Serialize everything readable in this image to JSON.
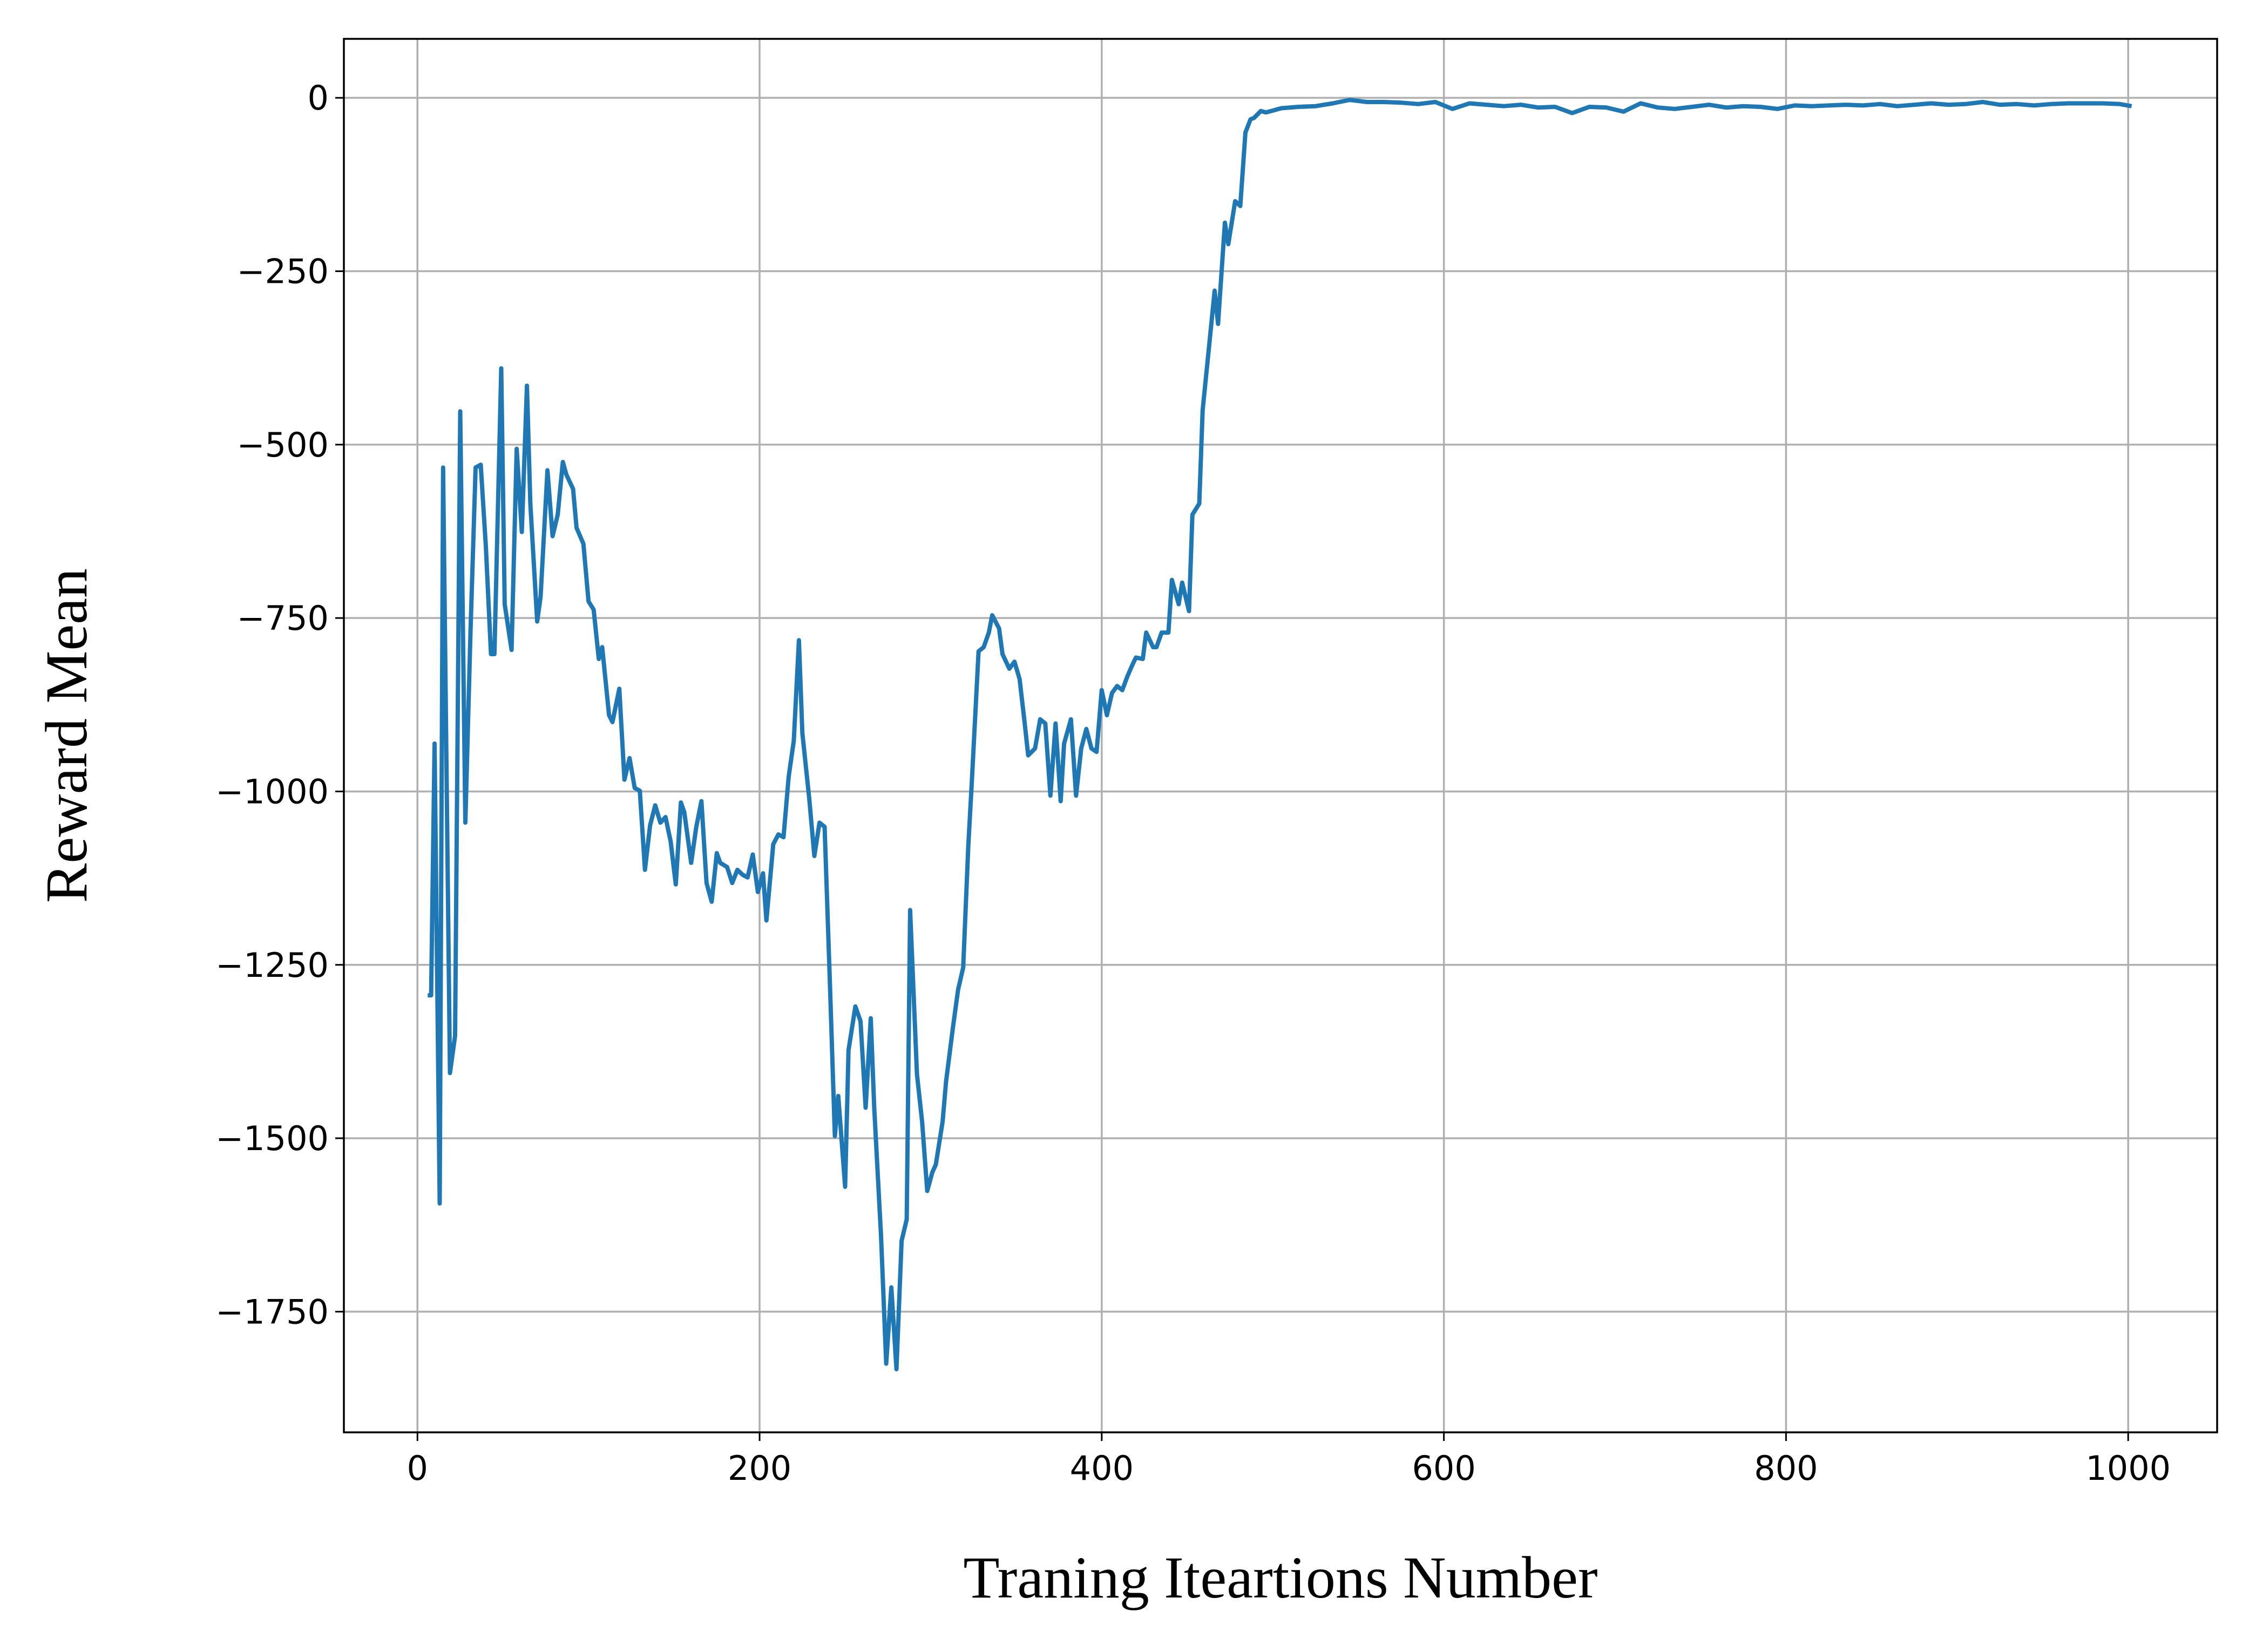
{
  "chart_data": {
    "type": "line",
    "x_label": "Traning Iteartions Number",
    "y_label": "Reward Mean",
    "xlim": [
      -43,
      1052
    ],
    "ylim": [
      -1924,
      85
    ],
    "xticks": [
      0,
      200,
      400,
      600,
      800,
      1000
    ],
    "yticks": [
      0,
      {
        "value": -250,
        "label": "−250"
      },
      {
        "value": -500,
        "label": "−500"
      },
      {
        "value": -750,
        "label": "−750"
      },
      {
        "value": -1000,
        "label": "−1000"
      },
      {
        "value": -1250,
        "label": "−1250"
      },
      {
        "value": -1500,
        "label": "−1500"
      },
      {
        "value": -1750,
        "label": "−1750"
      }
    ],
    "grid": true,
    "series": [
      {
        "color": "#1f77b4",
        "x": [
          6,
          8,
          10,
          13,
          15,
          19,
          22,
          25,
          28,
          31,
          34,
          37,
          40,
          43,
          45,
          49,
          51,
          55,
          58,
          61,
          64,
          66,
          70,
          72,
          76,
          79,
          82,
          85,
          87,
          91,
          93,
          97,
          100,
          103,
          106,
          108,
          112,
          114,
          118,
          121,
          124,
          127,
          130,
          133,
          136,
          139,
          142,
          145,
          148,
          151,
          154,
          156,
          160,
          163,
          166,
          169,
          172,
          175,
          177,
          181,
          184,
          187,
          190,
          193,
          196,
          199,
          202,
          204,
          208,
          211,
          214,
          217,
          220,
          223,
          225,
          229,
          232,
          235,
          238,
          241,
          244,
          246,
          250,
          252,
          256,
          259,
          262,
          265,
          267,
          271,
          274,
          277,
          280,
          283,
          286,
          288,
          292,
          295,
          298,
          301,
          303,
          307,
          309,
          313,
          316,
          319,
          322,
          324,
          328,
          331,
          334,
          336,
          340,
          342,
          346,
          349,
          352,
          355,
          357,
          361,
          364,
          367,
          370,
          373,
          376,
          378,
          382,
          385,
          388,
          391,
          394,
          397,
          400,
          403,
          406,
          409,
          412,
          415,
          418,
          420,
          424,
          426,
          430,
          432,
          435,
          439,
          441,
          445,
          447,
          451,
          453,
          457,
          459,
          463,
          466,
          468,
          472,
          474,
          478,
          481,
          484,
          487,
          489,
          493,
          496,
          499,
          505,
          515,
          525,
          535,
          545,
          555,
          565,
          575,
          585,
          595,
          605,
          615,
          625,
          635,
          645,
          655,
          665,
          675,
          685,
          695,
          705,
          715,
          725,
          735,
          745,
          755,
          765,
          775,
          785,
          795,
          805,
          815,
          825,
          835,
          845,
          855,
          865,
          875,
          885,
          895,
          905,
          915,
          925,
          935,
          945,
          955,
          965,
          975,
          985,
          995,
          1002
        ],
        "values": [
          -1294,
          -1294,
          -931,
          -1594,
          -533,
          -1406,
          -1352,
          -452,
          -1045,
          -771,
          -533,
          -529,
          -647,
          -802,
          -802,
          -390,
          -730,
          -796,
          -506,
          -626,
          -415,
          -585,
          -755,
          -719,
          -537,
          -632,
          -601,
          -525,
          -543,
          -564,
          -620,
          -643,
          -726,
          -738,
          -809,
          -792,
          -890,
          -900,
          -852,
          -983,
          -952,
          -995,
          -999,
          -1113,
          -1049,
          -1020,
          -1045,
          -1037,
          -1072,
          -1134,
          -1016,
          -1030,
          -1103,
          -1051,
          -1014,
          -1132,
          -1159,
          -1089,
          -1103,
          -1109,
          -1132,
          -1113,
          -1120,
          -1124,
          -1091,
          -1145,
          -1118,
          -1186,
          -1076,
          -1062,
          -1066,
          -979,
          -927,
          -782,
          -916,
          -1010,
          -1093,
          -1045,
          -1051,
          -1269,
          -1497,
          -1439,
          -1570,
          -1373,
          -1310,
          -1331,
          -1456,
          -1327,
          -1456,
          -1642,
          -1825,
          -1715,
          -1833,
          -1648,
          -1617,
          -1171,
          -1408,
          -1476,
          -1576,
          -1549,
          -1538,
          -1476,
          -1418,
          -1341,
          -1286,
          -1254,
          -1078,
          -989,
          -798,
          -792,
          -771,
          -746,
          -765,
          -802,
          -823,
          -813,
          -838,
          -902,
          -948,
          -938,
          -896,
          -902,
          -1006,
          -902,
          -1014,
          -931,
          -896,
          -1006,
          -938,
          -910,
          -938,
          -943,
          -854,
          -890,
          -858,
          -848,
          -854,
          -834,
          -817,
          -807,
          -809,
          -771,
          -792,
          -792,
          -771,
          -771,
          -695,
          -730,
          -699,
          -740,
          -601,
          -585,
          -450,
          -352,
          -278,
          -326,
          -180,
          -211,
          -149,
          -156,
          -50,
          -31,
          -29,
          -19,
          -21,
          -19,
          -15,
          -13,
          -12,
          -8,
          -3,
          -6,
          -6,
          -7,
          -9,
          -6,
          -16,
          -8,
          -10,
          -12,
          -10,
          -14,
          -13,
          -22,
          -13,
          -14,
          -20,
          -8,
          -14,
          -16,
          -13,
          -10,
          -14,
          -12,
          -13,
          -16,
          -11,
          -12,
          -11,
          -10,
          -11,
          -9,
          -12,
          -10,
          -8,
          -10,
          -9,
          -6,
          -10,
          -9,
          -11,
          -9,
          -8,
          -8,
          -8,
          -9,
          -12
        ]
      }
    ]
  }
}
